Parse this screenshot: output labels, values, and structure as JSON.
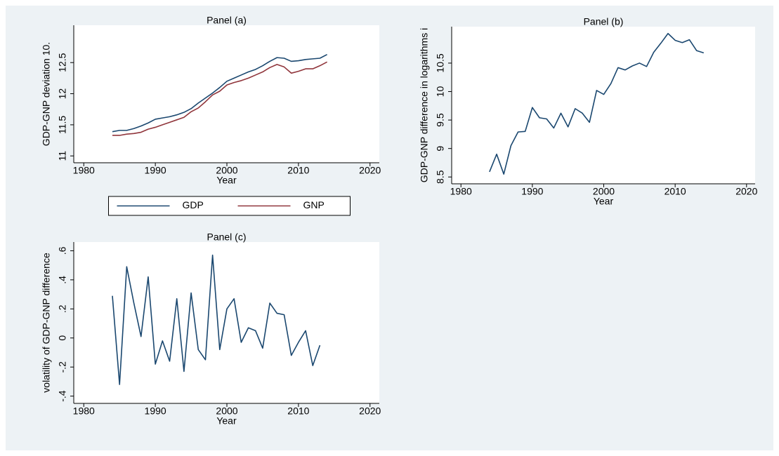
{
  "chart_data": [
    {
      "type": "line",
      "title": "Panel (a)",
      "x_label": "Year",
      "y_label": "GDP-GNP deviation 10.",
      "x": [
        1984,
        1985,
        1986,
        1987,
        1988,
        1989,
        1990,
        1991,
        1992,
        1993,
        1994,
        1995,
        1996,
        1997,
        1998,
        1999,
        2000,
        2001,
        2002,
        2003,
        2004,
        2005,
        2006,
        2007,
        2008,
        2009,
        2010,
        2011,
        2012,
        2013,
        2014
      ],
      "series": [
        {
          "name": "GDP",
          "color": "#1a476f",
          "values": [
            11.39,
            11.41,
            11.41,
            11.44,
            11.48,
            11.53,
            11.59,
            11.61,
            11.63,
            11.66,
            11.7,
            11.76,
            11.85,
            11.93,
            12.01,
            12.1,
            12.2,
            12.25,
            12.3,
            12.35,
            12.39,
            12.45,
            12.52,
            12.58,
            12.57,
            12.52,
            12.53,
            12.55,
            12.56,
            12.57,
            12.63
          ]
        },
        {
          "name": "GNP",
          "color": "#90353b",
          "values": [
            11.33,
            11.33,
            11.35,
            11.36,
            11.38,
            11.43,
            11.46,
            11.5,
            11.54,
            11.58,
            11.62,
            11.71,
            11.77,
            11.87,
            11.98,
            12.04,
            12.14,
            12.18,
            12.21,
            12.25,
            12.3,
            12.35,
            12.42,
            12.47,
            12.43,
            12.33,
            12.36,
            12.4,
            12.4,
            12.45,
            12.51
          ]
        }
      ],
      "xlim": [
        1978.6,
        2021.3
      ],
      "xticks": [
        1980,
        1990,
        2000,
        2010,
        2020
      ],
      "ylim": [
        10.89,
        13.1
      ],
      "yticks": [
        11,
        11.5,
        12,
        12.5
      ],
      "grid": false,
      "legend": "bottom"
    },
    {
      "type": "line",
      "title": "Panel (b)",
      "x_label": "Year",
      "y_label": "GDP-GNP difference in logarithms i",
      "x": [
        1984,
        1985,
        1986,
        1987,
        1988,
        1989,
        1990,
        1991,
        1992,
        1993,
        1994,
        1995,
        1996,
        1997,
        1998,
        1999,
        2000,
        2001,
        2002,
        2003,
        2004,
        2005,
        2006,
        2007,
        2008,
        2009,
        2010,
        2011,
        2012,
        2013,
        2014
      ],
      "values": [
        8.59,
        8.9,
        8.55,
        9.05,
        9.29,
        9.3,
        9.72,
        9.54,
        9.52,
        9.36,
        9.62,
        9.38,
        9.7,
        9.62,
        9.46,
        10.02,
        9.95,
        10.14,
        10.42,
        10.38,
        10.45,
        10.5,
        10.44,
        10.69,
        10.85,
        11.02,
        10.9,
        10.86,
        10.91,
        10.72,
        10.68
      ],
      "color": "#1a476f",
      "xlim": [
        1978.7,
        2021.2
      ],
      "xticks": [
        1980,
        1990,
        2000,
        2010,
        2020
      ],
      "ylim": [
        8.38,
        11.14
      ],
      "yticks": [
        8.5,
        9,
        9.5,
        10,
        10.5
      ],
      "grid": false
    },
    {
      "type": "line",
      "title": "Panel (c)",
      "x_label": "Year",
      "y_label": "volatility of GDP-GNP difference",
      "x": [
        1984,
        1985,
        1986,
        1987,
        1988,
        1989,
        1990,
        1991,
        1992,
        1993,
        1994,
        1995,
        1996,
        1997,
        1998,
        1999,
        2000,
        2001,
        2002,
        2003,
        2004,
        2005,
        2006,
        2007,
        2008,
        2009,
        2010,
        2011,
        2012,
        2013
      ],
      "values": [
        0.29,
        -0.32,
        0.49,
        0.24,
        0.01,
        0.42,
        -0.18,
        -0.02,
        -0.16,
        0.27,
        -0.23,
        0.31,
        -0.08,
        -0.15,
        0.57,
        -0.08,
        0.2,
        0.27,
        -0.03,
        0.07,
        0.05,
        -0.07,
        0.24,
        0.17,
        0.16,
        -0.12,
        -0.03,
        0.05,
        -0.19,
        -0.05
      ],
      "color": "#1a476f",
      "xlim": [
        1978.6,
        2021.3
      ],
      "xticks": [
        1980,
        1990,
        2000,
        2010,
        2020
      ],
      "ylim": [
        -0.45,
        0.66
      ],
      "yticks": [
        {
          "value": -0.4,
          "label": "-.4"
        },
        {
          "value": -0.2,
          "label": "-.2"
        },
        0,
        {
          "value": 0.2,
          "label": ".2"
        },
        {
          "value": 0.4,
          "label": ".4"
        },
        {
          "value": 0.6,
          "label": ".6"
        }
      ],
      "grid": false
    }
  ]
}
